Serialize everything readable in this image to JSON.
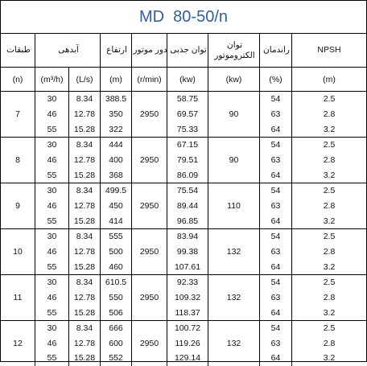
{
  "title": "MD  80-50/n",
  "header": {
    "columns": [
      "طبقات",
      "آبدهی",
      "ارتفاع",
      "دور موتور",
      "توان جذبی",
      "توان الکتروموتور",
      "راندمان",
      "NPSH"
    ],
    "units": [
      "(n)",
      "(m³/h)",
      "(L/s)",
      "(m)",
      "(r/min)",
      "(kw)",
      "(kw)",
      "(%)",
      "(m)"
    ]
  },
  "groups": [
    {
      "stages": 7,
      "speed": 2950,
      "motor_kw": 90,
      "rows": [
        [
          30,
          8.34,
          388.5,
          58.75,
          54,
          2.5
        ],
        [
          46,
          12.78,
          350,
          69.57,
          63,
          2.8
        ],
        [
          55,
          15.28,
          322,
          75.33,
          64,
          3.2
        ]
      ]
    },
    {
      "stages": 8,
      "speed": 2950,
      "motor_kw": 90,
      "rows": [
        [
          30,
          8.34,
          444,
          67.15,
          54,
          2.5
        ],
        [
          46,
          12.78,
          400,
          79.51,
          63,
          2.8
        ],
        [
          55,
          15.28,
          368,
          86.09,
          64,
          3.2
        ]
      ]
    },
    {
      "stages": 9,
      "speed": 2950,
      "motor_kw": 110,
      "rows": [
        [
          30,
          8.34,
          499.5,
          75.54,
          54,
          2.5
        ],
        [
          46,
          12.78,
          450,
          89.44,
          63,
          2.8
        ],
        [
          55,
          15.28,
          414,
          96.85,
          64,
          3.2
        ]
      ]
    },
    {
      "stages": 10,
      "speed": 2950,
      "motor_kw": 132,
      "rows": [
        [
          30,
          8.34,
          555,
          83.94,
          54,
          2.5
        ],
        [
          46,
          12.78,
          500,
          99.38,
          63,
          2.8
        ],
        [
          55,
          15.28,
          460,
          107.61,
          64,
          3.2
        ]
      ]
    },
    {
      "stages": 11,
      "speed": 2950,
      "motor_kw": 132,
      "rows": [
        [
          30,
          8.34,
          610.5,
          92.33,
          54,
          2.5
        ],
        [
          46,
          12.78,
          550,
          109.32,
          63,
          2.8
        ],
        [
          55,
          15.28,
          506,
          118.37,
          64,
          3.2
        ]
      ]
    },
    {
      "stages": 12,
      "speed": 2950,
      "motor_kw": 132,
      "rows": [
        [
          30,
          8.34,
          666,
          100.72,
          54,
          2.5
        ],
        [
          46,
          12.78,
          600,
          119.26,
          63,
          2.8
        ],
        [
          55,
          15.28,
          552,
          129.14,
          64,
          3.2
        ]
      ]
    }
  ]
}
